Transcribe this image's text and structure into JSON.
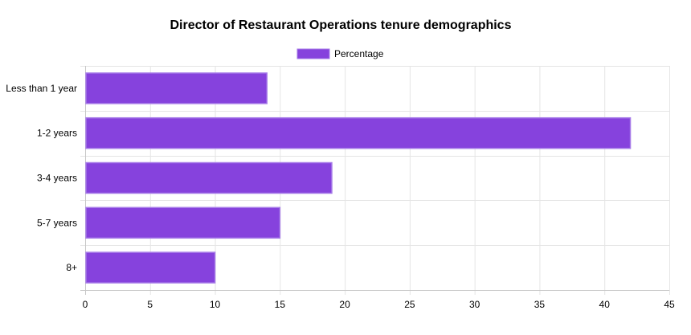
{
  "chart_data": {
    "type": "bar",
    "orientation": "horizontal",
    "title": "Director of Restaurant Operations tenure demographics",
    "categories": [
      "Less than 1 year",
      "1-2 years",
      "3-4 years",
      "5-7 years",
      "8+"
    ],
    "series": [
      {
        "name": "Percentage",
        "values": [
          14,
          42,
          19,
          15,
          10
        ],
        "color": "#8642dd",
        "border_color": "#a67ae8"
      }
    ],
    "xlabel": "",
    "ylabel": "",
    "xlim": [
      0,
      45
    ],
    "x_ticks": [
      0,
      5,
      10,
      15,
      20,
      25,
      30,
      35,
      40,
      45
    ],
    "grid": true,
    "legend_position": "top-center"
  }
}
